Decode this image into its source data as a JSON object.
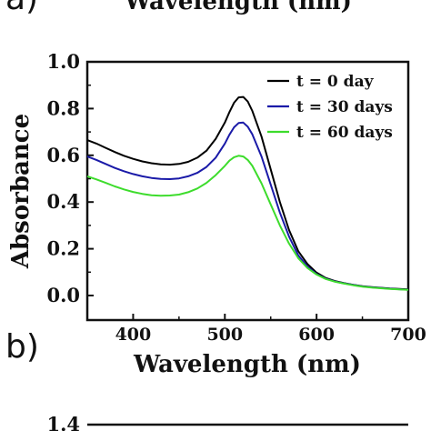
{
  "header_fragment": {
    "panel_label": "a)",
    "xlabel": "Wavelength (nm)"
  },
  "footer_fragment": {
    "tick_label": "1.4"
  },
  "chart_data": {
    "type": "line",
    "panel_label": "b)",
    "xlabel": "Wavelength (nm)",
    "ylabel": "Absorbance",
    "xlim": [
      350,
      700
    ],
    "ylim": [
      0.0,
      1.0
    ],
    "xticks": [
      400,
      500,
      600,
      700
    ],
    "yticks": [
      "0.0",
      "0.2",
      "0.4",
      "0.6",
      "0.8",
      "1.0"
    ],
    "grid": false,
    "legend_position": "top-right",
    "series": [
      {
        "name": "t = 0 day",
        "color": "#000000",
        "x": [
          350,
          360,
          370,
          380,
          390,
          400,
          410,
          420,
          430,
          440,
          450,
          460,
          470,
          480,
          490,
          500,
          505,
          510,
          515,
          520,
          525,
          530,
          540,
          550,
          560,
          570,
          580,
          590,
          600,
          610,
          620,
          630,
          640,
          650,
          660,
          670,
          680,
          690,
          700
        ],
        "y": [
          0.665,
          0.65,
          0.632,
          0.614,
          0.598,
          0.585,
          0.574,
          0.566,
          0.561,
          0.56,
          0.563,
          0.572,
          0.59,
          0.62,
          0.67,
          0.74,
          0.785,
          0.825,
          0.848,
          0.85,
          0.83,
          0.79,
          0.68,
          0.54,
          0.4,
          0.28,
          0.19,
          0.135,
          0.098,
          0.075,
          0.062,
          0.053,
          0.046,
          0.04,
          0.036,
          0.033,
          0.03,
          0.028,
          0.026
        ]
      },
      {
        "name": "t = 30 days",
        "color": "#1a1aa8",
        "x": [
          350,
          360,
          370,
          380,
          390,
          400,
          410,
          420,
          430,
          440,
          450,
          460,
          470,
          480,
          490,
          500,
          505,
          510,
          515,
          520,
          525,
          530,
          540,
          550,
          560,
          570,
          580,
          590,
          600,
          610,
          620,
          630,
          640,
          650,
          660,
          670,
          680,
          690,
          700
        ],
        "y": [
          0.595,
          0.58,
          0.563,
          0.546,
          0.532,
          0.52,
          0.51,
          0.503,
          0.499,
          0.498,
          0.501,
          0.51,
          0.525,
          0.55,
          0.59,
          0.65,
          0.688,
          0.72,
          0.738,
          0.74,
          0.722,
          0.69,
          0.595,
          0.475,
          0.355,
          0.252,
          0.172,
          0.124,
          0.092,
          0.072,
          0.06,
          0.052,
          0.045,
          0.039,
          0.035,
          0.032,
          0.029,
          0.027,
          0.025
        ]
      },
      {
        "name": "t = 60 days",
        "color": "#3ddc2c",
        "x": [
          350,
          360,
          370,
          380,
          390,
          400,
          410,
          420,
          430,
          440,
          450,
          460,
          470,
          480,
          490,
          500,
          505,
          510,
          515,
          520,
          525,
          530,
          540,
          550,
          560,
          570,
          580,
          590,
          600,
          610,
          620,
          630,
          640,
          650,
          660,
          670,
          680,
          690,
          700
        ],
        "y": [
          0.51,
          0.497,
          0.482,
          0.467,
          0.454,
          0.443,
          0.435,
          0.429,
          0.427,
          0.428,
          0.432,
          0.442,
          0.458,
          0.482,
          0.515,
          0.555,
          0.577,
          0.592,
          0.598,
          0.595,
          0.58,
          0.555,
          0.48,
          0.39,
          0.3,
          0.222,
          0.16,
          0.118,
          0.09,
          0.071,
          0.059,
          0.051,
          0.044,
          0.038,
          0.034,
          0.031,
          0.028,
          0.026,
          0.024
        ]
      }
    ]
  }
}
